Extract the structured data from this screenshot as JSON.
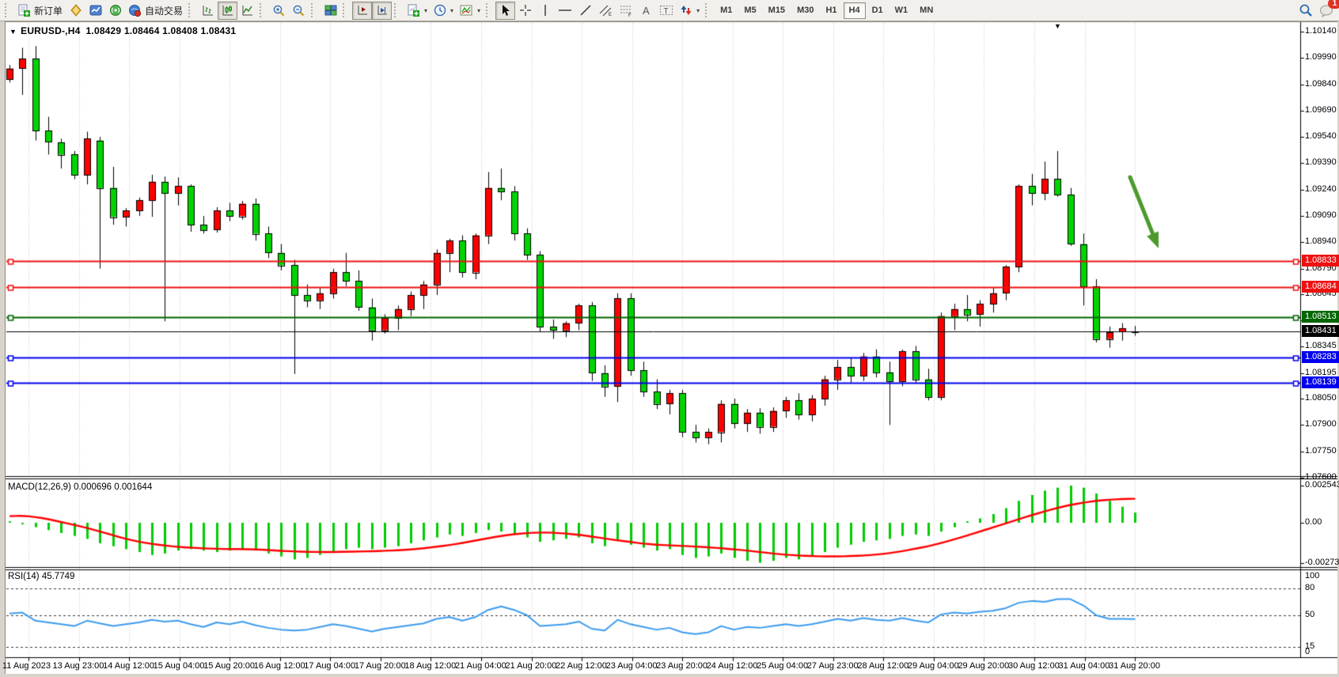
{
  "icons": {
    "dropdown_marker": "▼",
    "shift_marker": "▼",
    "caret": "▾"
  },
  "toolbar": {
    "new_order_label": "新订单",
    "auto_trading_label": "自动交易",
    "timeframes": [
      "M1",
      "M5",
      "M15",
      "M30",
      "H1",
      "H4",
      "D1",
      "W1",
      "MN"
    ],
    "active_timeframe": "H4",
    "notification_count": "1"
  },
  "chart": {
    "title": "EURUSD-,H4",
    "ohlc": "1.08429 1.08464 1.08408 1.08431",
    "up_color": "#ff0000",
    "down_color": "#00d400",
    "wick_color": "#000000",
    "grid_color": "#c6c6c6",
    "price_ticks": [
      "1.10140",
      "1.09990",
      "1.09840",
      "1.09690",
      "1.09540",
      "1.09390",
      "1.09240",
      "1.09090",
      "1.08940",
      "1.08790",
      "1.08645",
      "1.08495",
      "1.08345",
      "1.08195",
      "1.08050",
      "1.07900",
      "1.07750",
      "1.07600"
    ],
    "hlines": [
      {
        "price": "1.08833",
        "value": 1.08833,
        "color": "#ee1111",
        "type": "resistance-line"
      },
      {
        "price": "1.08684",
        "value": 1.08684,
        "color": "#ee1111",
        "type": "resistance-line"
      },
      {
        "price": "1.08513",
        "value": 1.08513,
        "color": "#006600",
        "type": "support-line"
      },
      {
        "price": "1.08431",
        "value": 1.08431,
        "color": "#000000",
        "type": "current-price-line"
      },
      {
        "price": "1.08283",
        "value": 1.08283,
        "color": "#0000ee",
        "type": "support-line"
      },
      {
        "price": "1.08139",
        "value": 1.08139,
        "color": "#0000ee",
        "type": "support-line"
      }
    ],
    "time_labels": [
      "11 Aug 2023",
      "13 Aug 23:00",
      "14 Aug 12:00",
      "15 Aug 04:00",
      "15 Aug 20:00",
      "16 Aug 12:00",
      "17 Aug 04:00",
      "17 Aug 20:00",
      "18 Aug 12:00",
      "21 Aug 04:00",
      "21 Aug 20:00",
      "22 Aug 12:00",
      "23 Aug 04:00",
      "23 Aug 20:00",
      "24 Aug 12:00",
      "25 Aug 04:00",
      "27 Aug 23:00",
      "28 Aug 12:00",
      "29 Aug 04:00",
      "29 Aug 20:00",
      "30 Aug 12:00",
      "31 Aug 04:00",
      "31 Aug 20:00"
    ],
    "candles": [
      [
        1.0987,
        1.0995,
        1.0985,
        1.0993
      ],
      [
        1.0993,
        1.10048,
        1.0978,
        1.09985
      ],
      [
        1.09985,
        1.10058,
        1.0952,
        1.09575
      ],
      [
        1.09575,
        1.09655,
        1.0944,
        1.0951
      ],
      [
        1.0951,
        1.0953,
        1.0936,
        1.0944
      ],
      [
        1.0944,
        1.0946,
        1.093,
        1.09325
      ],
      [
        1.09325,
        1.0957,
        1.0927,
        1.0953
      ],
      [
        1.0952,
        1.0954,
        1.0879,
        1.0925
      ],
      [
        1.0925,
        1.0937,
        1.0904,
        1.09085
      ],
      [
        1.09085,
        1.09135,
        1.0903,
        1.0912
      ],
      [
        1.0912,
        1.09195,
        1.0909,
        1.0918
      ],
      [
        1.0918,
        1.09325,
        1.09085,
        1.09285
      ],
      [
        1.09285,
        1.09315,
        1.0849,
        1.0922
      ],
      [
        1.0922,
        1.0931,
        1.0915,
        1.0926
      ],
      [
        1.0926,
        1.0927,
        1.09,
        1.0904
      ],
      [
        1.0904,
        1.0909,
        1.0899,
        1.0901
      ],
      [
        1.0901,
        1.0914,
        1.08995,
        1.0912
      ],
      [
        1.0912,
        1.09165,
        1.0906,
        1.0909
      ],
      [
        1.0909,
        1.09175,
        1.0907,
        1.0916
      ],
      [
        1.0916,
        1.0919,
        1.0895,
        1.0899
      ],
      [
        1.0899,
        1.0903,
        1.0885,
        1.0888
      ],
      [
        1.0888,
        1.0893,
        1.0878,
        1.0881
      ],
      [
        1.0881,
        1.0884,
        1.0819,
        1.0864
      ],
      [
        1.0864,
        1.087,
        1.0857,
        1.0861
      ],
      [
        1.0861,
        1.0868,
        1.0856,
        1.0865
      ],
      [
        1.0865,
        1.0879,
        1.0862,
        1.0877
      ],
      [
        1.0877,
        1.0888,
        1.0869,
        1.0872
      ],
      [
        1.0872,
        1.0878,
        1.0855,
        1.0857
      ],
      [
        1.0857,
        1.0862,
        1.0838,
        1.0844
      ],
      [
        1.0844,
        1.0853,
        1.0842,
        1.0851
      ],
      [
        1.0851,
        1.0858,
        1.0844,
        1.0856
      ],
      [
        1.0856,
        1.0866,
        1.0852,
        1.0864
      ],
      [
        1.0864,
        1.0872,
        1.0856,
        1.087
      ],
      [
        1.087,
        1.089,
        1.0864,
        1.0888
      ],
      [
        1.0888,
        1.0896,
        1.0877,
        1.0895
      ],
      [
        1.0895,
        1.0898,
        1.0874,
        1.0877
      ],
      [
        1.0877,
        1.0899,
        1.0873,
        1.0898
      ],
      [
        1.0898,
        1.0934,
        1.0893,
        1.0925
      ],
      [
        1.0925,
        1.0936,
        1.0918,
        1.0923
      ],
      [
        1.0923,
        1.0926,
        1.0895,
        1.0899
      ],
      [
        1.0899,
        1.0902,
        1.0884,
        1.0887
      ],
      [
        1.0887,
        1.0889,
        1.0843,
        1.0846
      ],
      [
        1.0846,
        1.085,
        1.0839,
        1.0844
      ],
      [
        1.0844,
        1.0849,
        1.084,
        1.0848
      ],
      [
        1.0848,
        1.0859,
        1.0844,
        1.0858
      ],
      [
        1.0858,
        1.086,
        1.0815,
        1.08195
      ],
      [
        1.08195,
        1.0824,
        1.0806,
        1.0812
      ],
      [
        1.0812,
        1.0865,
        1.0803,
        1.0862
      ],
      [
        1.0862,
        1.0865,
        1.0818,
        1.0821
      ],
      [
        1.0821,
        1.0826,
        1.0806,
        1.0809
      ],
      [
        1.0809,
        1.0816,
        1.0799,
        1.0802
      ],
      [
        1.0802,
        1.081,
        1.0796,
        1.0808
      ],
      [
        1.0808,
        1.081,
        1.0783,
        1.0786
      ],
      [
        1.0786,
        1.079,
        1.078,
        1.0783
      ],
      [
        1.0783,
        1.0788,
        1.0779,
        1.0786
      ],
      [
        1.0786,
        1.0804,
        1.078,
        1.0802
      ],
      [
        1.0802,
        1.0805,
        1.0788,
        1.0791
      ],
      [
        1.0791,
        1.0799,
        1.0786,
        1.0797
      ],
      [
        1.0797,
        1.07995,
        1.0785,
        1.0789
      ],
      [
        1.0789,
        1.08,
        1.0786,
        1.0798
      ],
      [
        1.0798,
        1.0806,
        1.0794,
        1.0804
      ],
      [
        1.0804,
        1.0808,
        1.0793,
        1.0796
      ],
      [
        1.0796,
        1.0807,
        1.0792,
        1.0805
      ],
      [
        1.0805,
        1.0818,
        1.0801,
        1.0816
      ],
      [
        1.0816,
        1.0827,
        1.081,
        1.0823
      ],
      [
        1.0823,
        1.0828,
        1.0814,
        1.0818
      ],
      [
        1.0818,
        1.0831,
        1.0815,
        1.0829
      ],
      [
        1.0829,
        1.0833,
        1.0817,
        1.082
      ],
      [
        1.082,
        1.0826,
        1.079,
        1.0815
      ],
      [
        1.0815,
        1.0833,
        1.0812,
        1.0832
      ],
      [
        1.0832,
        1.0835,
        1.0814,
        1.0816
      ],
      [
        1.0816,
        1.0822,
        1.0804,
        1.0806
      ],
      [
        1.0806,
        1.0854,
        1.0804,
        1.0852
      ],
      [
        1.0852,
        1.0859,
        1.0844,
        1.0856
      ],
      [
        1.0856,
        1.0864,
        1.0849,
        1.0853
      ],
      [
        1.0853,
        1.0861,
        1.0846,
        1.0859
      ],
      [
        1.0859,
        1.0868,
        1.0854,
        1.0865
      ],
      [
        1.0865,
        1.0881,
        1.0861,
        1.088
      ],
      [
        1.088,
        1.0927,
        1.0877,
        1.0926
      ],
      [
        1.0926,
        1.0933,
        1.0915,
        1.0922
      ],
      [
        1.0922,
        1.094,
        1.0918,
        1.093
      ],
      [
        1.093,
        1.0946,
        1.092,
        1.0921
      ],
      [
        1.0921,
        1.0925,
        1.0892,
        1.0893
      ],
      [
        1.0893,
        1.0899,
        1.0858,
        1.0869
      ],
      [
        1.0869,
        1.0873,
        1.0837,
        1.0839
      ],
      [
        1.0839,
        1.0846,
        1.0834,
        1.0843
      ],
      [
        1.0843,
        1.0848,
        1.0838,
        1.0845
      ],
      [
        1.08429,
        1.08464,
        1.08408,
        1.08431
      ]
    ]
  },
  "macd": {
    "label": "MACD(12,26,9)",
    "values": "0.000696 0.001644",
    "scale": [
      "0.002543",
      "0.00",
      "-0.002733"
    ],
    "hist_color": "#00cc00",
    "signal_color": "#ff0000",
    "histogram": [
      0.0001,
      -0.0001,
      -0.0003,
      -0.0005,
      -0.0007,
      -0.0009,
      -0.0011,
      -0.0014,
      -0.0016,
      -0.0018,
      -0.002,
      -0.0022,
      -0.0021,
      -0.0019,
      -0.0018,
      -0.0019,
      -0.002,
      -0.0019,
      -0.0018,
      -0.0019,
      -0.0021,
      -0.0023,
      -0.0025,
      -0.0024,
      -0.0022,
      -0.002,
      -0.0018,
      -0.0017,
      -0.0018,
      -0.0017,
      -0.0016,
      -0.0014,
      -0.0012,
      -0.001,
      -0.0008,
      -0.0009,
      -0.0007,
      -0.0005,
      -0.0006,
      -0.0008,
      -0.001,
      -0.0013,
      -0.0012,
      -0.0011,
      -0.001,
      -0.0014,
      -0.0016,
      -0.0012,
      -0.0015,
      -0.0017,
      -0.0019,
      -0.0018,
      -0.0022,
      -0.0024,
      -0.0023,
      -0.0021,
      -0.0024,
      -0.0026,
      -0.002733,
      -0.0026,
      -0.0024,
      -0.0025,
      -0.0023,
      -0.002,
      -0.0017,
      -0.0015,
      -0.0013,
      -0.0012,
      -0.0011,
      -0.0009,
      -0.0008,
      -0.0009,
      -0.0006,
      -0.0003,
      0.0001,
      0.0003,
      0.0006,
      0.001,
      0.0015,
      0.0019,
      0.0022,
      0.0024,
      0.002543,
      0.0024,
      0.002,
      0.0015,
      0.0011,
      0.000696
    ],
    "signal": [
      0.00045,
      0.00048,
      0.0004,
      0.00025,
      5e-05,
      -0.00015,
      -0.00035,
      -0.0006,
      -0.00085,
      -0.0011,
      -0.0013,
      -0.00145,
      -0.00155,
      -0.00165,
      -0.0017,
      -0.00175,
      -0.00178,
      -0.0018,
      -0.0018,
      -0.00182,
      -0.00186,
      -0.00192,
      -0.00196,
      -0.00199,
      -0.002,
      -0.002,
      -0.00198,
      -0.00196,
      -0.00195,
      -0.00192,
      -0.00188,
      -0.00182,
      -0.00174,
      -0.00164,
      -0.00152,
      -0.00138,
      -0.00122,
      -0.00105,
      -0.0009,
      -0.00078,
      -0.0007,
      -0.00066,
      -0.00068,
      -0.00074,
      -0.00082,
      -0.00094,
      -0.00108,
      -0.0012,
      -0.00132,
      -0.00142,
      -0.0015,
      -0.00154,
      -0.00158,
      -0.00162,
      -0.00168,
      -0.00174,
      -0.00182,
      -0.0019,
      -0.002,
      -0.0021,
      -0.00218,
      -0.00224,
      -0.00228,
      -0.0023,
      -0.0023,
      -0.00228,
      -0.00224,
      -0.00218,
      -0.00208,
      -0.00194,
      -0.00178,
      -0.0016,
      -0.00138,
      -0.00114,
      -0.00088,
      -0.0006,
      -0.00032,
      -4e-05,
      0.00024,
      0.00052,
      0.00078,
      0.00102,
      0.00122,
      0.00138,
      0.0015,
      0.00158,
      0.00162,
      0.001644
    ]
  },
  "rsi": {
    "label": "RSI(14) 45.7749",
    "scale": [
      "100",
      "80",
      "50",
      "15",
      "0"
    ],
    "levels": [
      80,
      50,
      15
    ],
    "color": "#3c9bef",
    "values": [
      52,
      53,
      44,
      42,
      40,
      38,
      44,
      41,
      38,
      40,
      42,
      45,
      43,
      44,
      40,
      37,
      42,
      40,
      43,
      39,
      36,
      34,
      33,
      34,
      37,
      40,
      38,
      35,
      32,
      35,
      37,
      39,
      41,
      46,
      48,
      44,
      48,
      56,
      60,
      56,
      50,
      38,
      39,
      40,
      43,
      35,
      33,
      45,
      40,
      37,
      34,
      36,
      31,
      29,
      31,
      38,
      34,
      37,
      36,
      38,
      40,
      38,
      40,
      43,
      46,
      44,
      47,
      45,
      44,
      47,
      44,
      42,
      51,
      53,
      52,
      54,
      55,
      58,
      64,
      66,
      65,
      68,
      68,
      61,
      50,
      46,
      46,
      45.77
    ]
  },
  "annotation_arrow": {
    "from": [
      1428,
      224
    ],
    "to": [
      1464,
      314
    ],
    "color": "#4c9a2a"
  }
}
